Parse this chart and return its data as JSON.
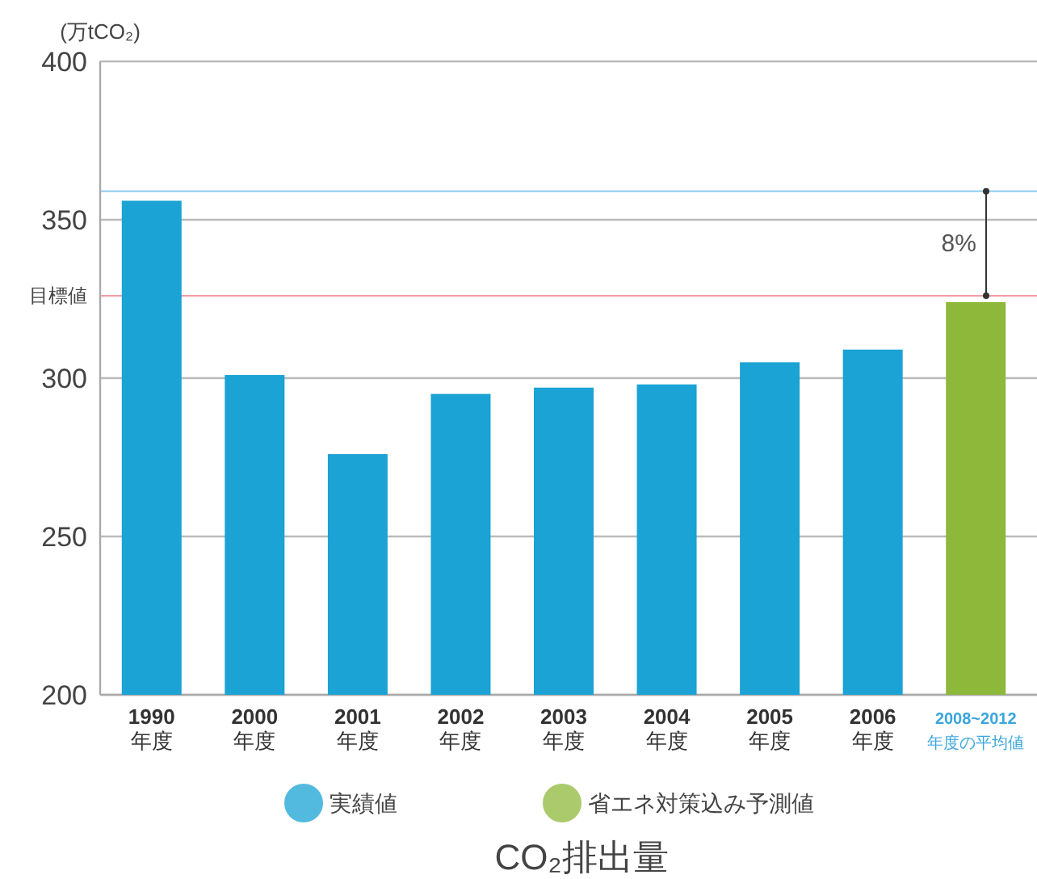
{
  "chart_data": {
    "type": "bar",
    "title": "CO₂排出量",
    "ylabel": "(万tCO₂)",
    "categories": [
      "1990\n年度",
      "2000\n年度",
      "2001\n年度",
      "2002\n年度",
      "2003\n年度",
      "2004\n年度",
      "2005\n年度",
      "2006\n年度",
      "2008~2012\n年度の平均値"
    ],
    "series": [
      {
        "name": "実績値",
        "color": "#1aa3d4",
        "values": [
          356,
          301,
          276,
          295,
          297,
          298,
          305,
          309,
          null
        ]
      },
      {
        "name": "省エネ対策込み予測値",
        "color": "#8db83a",
        "values": [
          null,
          null,
          null,
          null,
          null,
          null,
          null,
          null,
          324
        ]
      }
    ],
    "ylim": [
      200,
      400
    ],
    "yticks": [
      200,
      250,
      300,
      {
        "value": 326,
        "label": "目標値"
      },
      350,
      400
    ],
    "ref_lines": [
      {
        "axis": "y",
        "value": 359,
        "color": "#9fd6f0"
      },
      {
        "axis": "y",
        "value": 326,
        "color": "#f2a0a8"
      }
    ],
    "annotations": [
      "8%"
    ],
    "grid": "y",
    "legend": "bottom"
  }
}
